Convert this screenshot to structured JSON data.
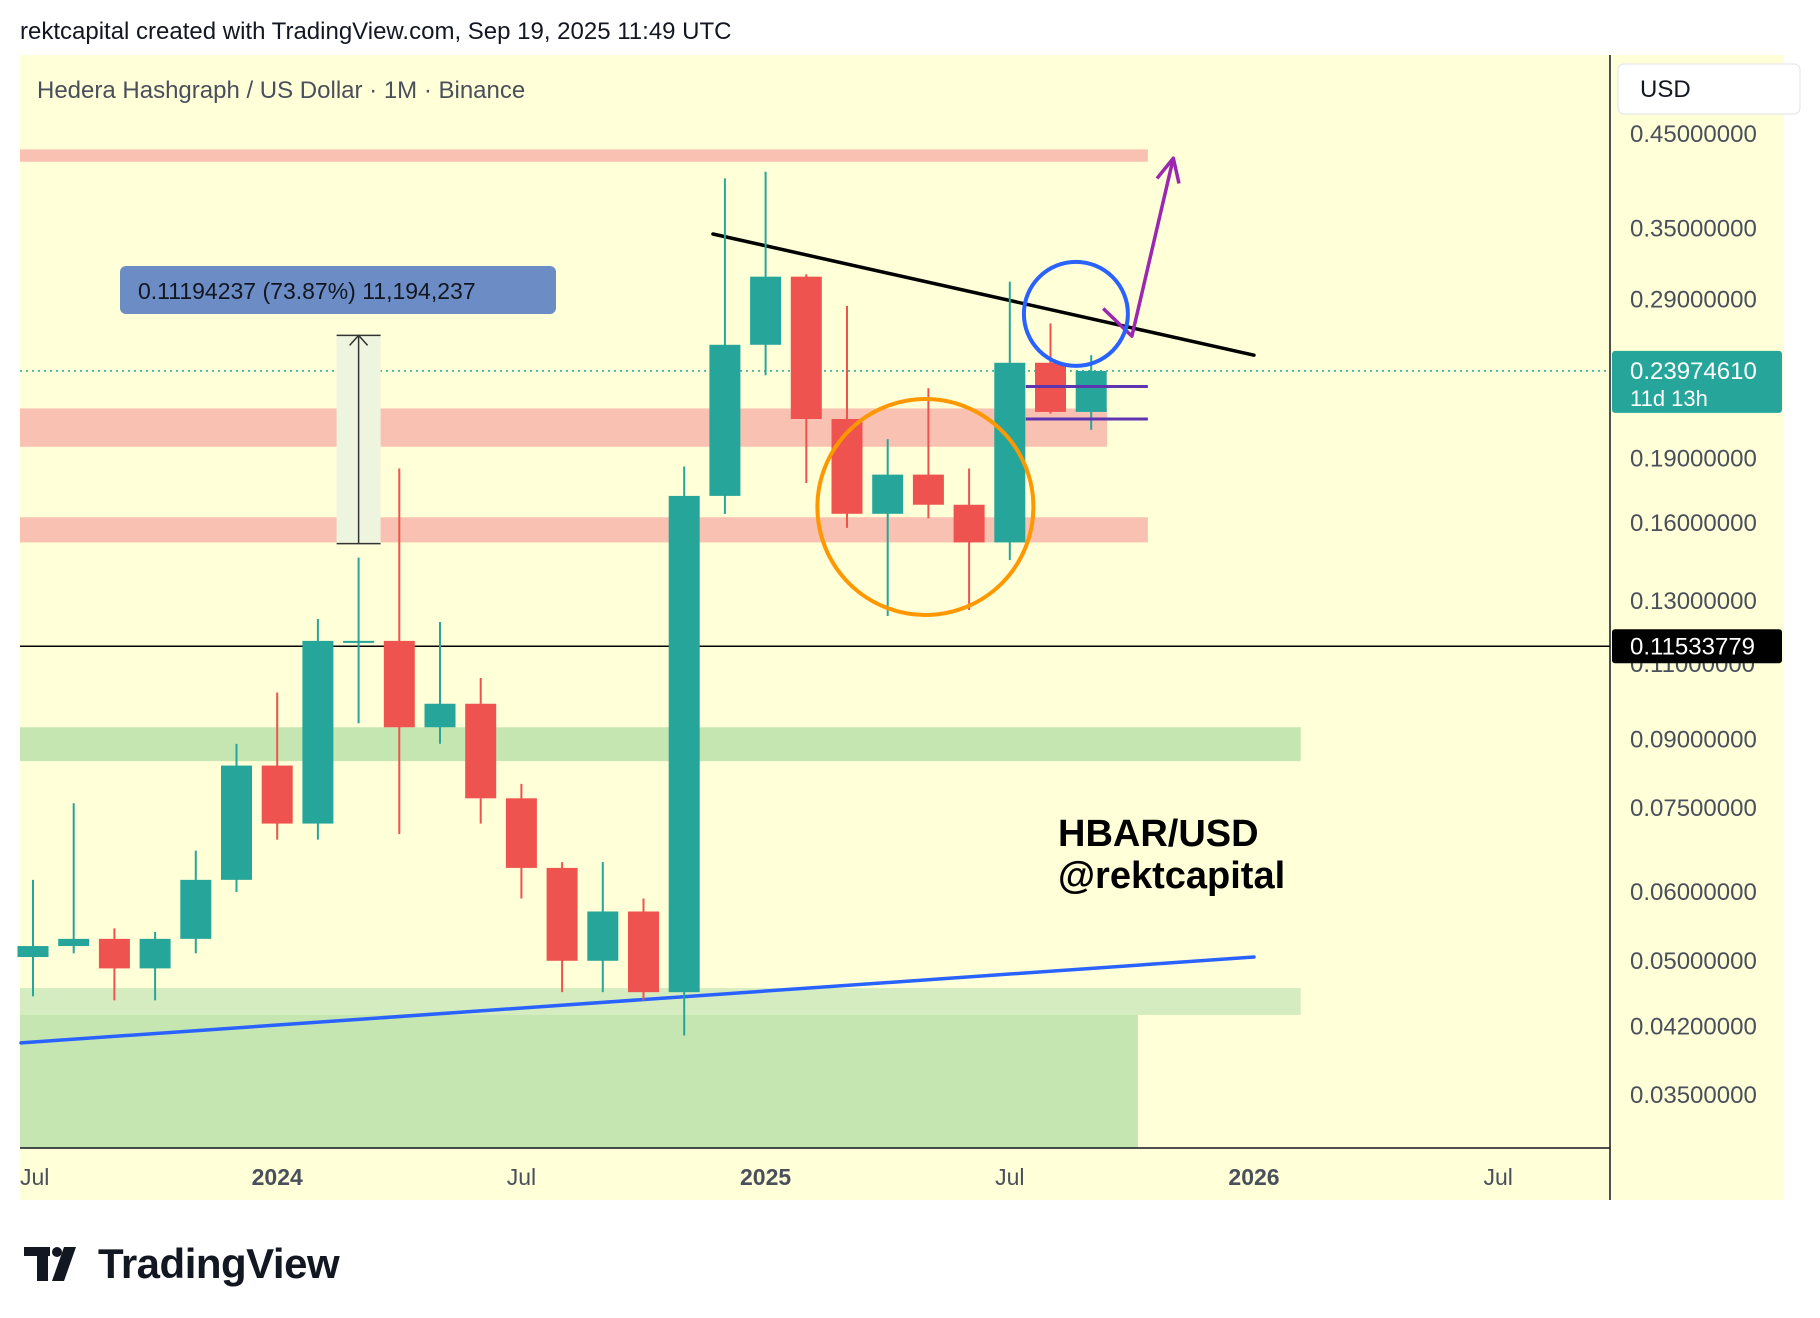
{
  "header": {
    "text": "rektcapital created with TradingView.com, Sep 19, 2025 11:49 UTC"
  },
  "footer": {
    "brand": "TradingView",
    "logo_icon": "tradingview-logo-icon"
  },
  "chart_data": {
    "type": "candlestick",
    "title": "Hedera Hashgraph / US Dollar · 1M · Binance",
    "currency": "USD",
    "scale": "log",
    "ylim": [
      0.03,
      0.5
    ],
    "y_ticks": [
      {
        "label": "0.45000000",
        "value": 0.45
      },
      {
        "label": "0.35000000",
        "value": 0.35
      },
      {
        "label": "0.29000000",
        "value": 0.29
      },
      {
        "label": "0.19000000",
        "value": 0.19
      },
      {
        "label": "0.16000000",
        "value": 0.16
      },
      {
        "label": "0.13000000",
        "value": 0.13
      },
      {
        "label": "0.11000000",
        "value": 0.11
      },
      {
        "label": "0.09000000",
        "value": 0.09
      },
      {
        "label": "0.07500000",
        "value": 0.075
      },
      {
        "label": "0.06000000",
        "value": 0.06
      },
      {
        "label": "0.05000000",
        "value": 0.05
      },
      {
        "label": "0.04200000",
        "value": 0.042
      },
      {
        "label": "0.03500000",
        "value": 0.035
      }
    ],
    "x_ticks": [
      {
        "label": "Jul",
        "date": "2023-07",
        "bold": false
      },
      {
        "label": "2024",
        "date": "2024-01",
        "bold": true
      },
      {
        "label": "Jul",
        "date": "2024-07",
        "bold": false
      },
      {
        "label": "2025",
        "date": "2025-01",
        "bold": true
      },
      {
        "label": "Jul",
        "date": "2025-07",
        "bold": false
      },
      {
        "label": "2026",
        "date": "2026-01",
        "bold": true
      },
      {
        "label": "Jul",
        "date": "2026-07",
        "bold": false
      }
    ],
    "candles": [
      {
        "date": "2023-07",
        "open": 0.0505,
        "high": 0.062,
        "low": 0.0455,
        "close": 0.052
      },
      {
        "date": "2023-08",
        "open": 0.052,
        "high": 0.076,
        "low": 0.051,
        "close": 0.053
      },
      {
        "date": "2023-09",
        "open": 0.053,
        "high": 0.0545,
        "low": 0.045,
        "close": 0.049
      },
      {
        "date": "2023-10",
        "open": 0.049,
        "high": 0.054,
        "low": 0.045,
        "close": 0.053
      },
      {
        "date": "2023-11",
        "open": 0.053,
        "high": 0.067,
        "low": 0.051,
        "close": 0.062
      },
      {
        "date": "2023-12",
        "open": 0.062,
        "high": 0.089,
        "low": 0.06,
        "close": 0.084
      },
      {
        "date": "2024-01",
        "open": 0.084,
        "high": 0.102,
        "low": 0.069,
        "close": 0.072
      },
      {
        "date": "2024-02",
        "open": 0.072,
        "high": 0.124,
        "low": 0.069,
        "close": 0.117
      },
      {
        "date": "2024-03",
        "open": 0.117,
        "high": 0.146,
        "low": 0.094,
        "close": 0.117
      },
      {
        "date": "2024-04",
        "open": 0.117,
        "high": 0.185,
        "low": 0.07,
        "close": 0.093
      },
      {
        "date": "2024-05",
        "open": 0.093,
        "high": 0.123,
        "low": 0.089,
        "close": 0.099
      },
      {
        "date": "2024-06",
        "open": 0.099,
        "high": 0.106,
        "low": 0.072,
        "close": 0.077
      },
      {
        "date": "2024-07",
        "open": 0.077,
        "high": 0.08,
        "low": 0.059,
        "close": 0.064
      },
      {
        "date": "2024-08",
        "open": 0.064,
        "high": 0.065,
        "low": 0.046,
        "close": 0.05
      },
      {
        "date": "2024-09",
        "open": 0.05,
        "high": 0.065,
        "low": 0.046,
        "close": 0.057
      },
      {
        "date": "2024-10",
        "open": 0.057,
        "high": 0.059,
        "low": 0.045,
        "close": 0.046
      },
      {
        "date": "2024-11",
        "open": 0.046,
        "high": 0.186,
        "low": 0.041,
        "close": 0.172
      },
      {
        "date": "2024-12",
        "open": 0.172,
        "high": 0.4,
        "low": 0.164,
        "close": 0.257
      },
      {
        "date": "2025-01",
        "open": 0.257,
        "high": 0.407,
        "low": 0.237,
        "close": 0.308
      },
      {
        "date": "2025-02",
        "open": 0.308,
        "high": 0.31,
        "low": 0.178,
        "close": 0.211
      },
      {
        "date": "2025-03",
        "open": 0.211,
        "high": 0.285,
        "low": 0.158,
        "close": 0.164
      },
      {
        "date": "2025-04",
        "open": 0.164,
        "high": 0.2,
        "low": 0.125,
        "close": 0.182
      },
      {
        "date": "2025-05",
        "open": 0.182,
        "high": 0.229,
        "low": 0.162,
        "close": 0.168
      },
      {
        "date": "2025-06",
        "open": 0.168,
        "high": 0.185,
        "low": 0.127,
        "close": 0.152
      },
      {
        "date": "2025-07",
        "open": 0.152,
        "high": 0.304,
        "low": 0.145,
        "close": 0.245
      },
      {
        "date": "2025-08",
        "open": 0.245,
        "high": 0.272,
        "low": 0.214,
        "close": 0.215
      },
      {
        "date": "2025-09",
        "open": 0.215,
        "high": 0.25,
        "low": 0.205,
        "close": 0.2397
      }
    ],
    "current_price": {
      "label": "0.23974610",
      "sub": "11d 13h",
      "value": 0.2397461,
      "color": "#26a69a"
    },
    "horizontal_line": {
      "label": "0.11533779",
      "value": 0.11533779,
      "color": "#000000"
    },
    "measure_tool": {
      "label": "0.11194237 (73.87%) 11,194,237",
      "from_value": 0.1515,
      "to_value": 0.2635,
      "date": "2024-03"
    },
    "resistance_zones": [
      {
        "from_value": 0.418,
        "to_value": 0.432,
        "end": "2025-10",
        "color": "#f9c1b2"
      },
      {
        "from_value": 0.196,
        "to_value": 0.217,
        "end": "2025-09",
        "color": "#f9c1b2"
      },
      {
        "from_value": 0.152,
        "to_value": 0.1625,
        "end": "2025-10",
        "color": "#f9c1b2"
      }
    ],
    "support_zones": [
      {
        "from_value": 0.085,
        "to_value": 0.093,
        "end": "2026-02",
        "color": "#c5e5b1"
      },
      {
        "from_value": 0.0433,
        "to_value": 0.0465,
        "end": "2026-02",
        "color": "#d4ecbf"
      },
      {
        "from_value": 0.029,
        "to_value": 0.0433,
        "end": "2025-10",
        "color": "#c5e5b1"
      }
    ],
    "trendlines": [
      {
        "name": "descending-resistance",
        "from": {
          "date": "2024-12",
          "value": 0.345
        },
        "to": {
          "date": "2026-01",
          "value": 0.25
        },
        "color": "#000000"
      },
      {
        "name": "ascending-support",
        "from": {
          "date": "2023-07",
          "value": 0.0402
        },
        "to": {
          "date": "2026-01",
          "value": 0.0505
        },
        "color": "#2962ff"
      }
    ],
    "range_box": {
      "top_value": 0.23,
      "bottom_value": 0.211,
      "from": "2025-07",
      "to": "2025-10",
      "color": "#5e35b1"
    },
    "projection_arrow": {
      "points": [
        {
          "date": "2025-09",
          "value": 0.283
        },
        {
          "date": "2025-10",
          "value": 0.263
        },
        {
          "date": "2025-12",
          "value": 0.422
        }
      ],
      "color": "#9c27b0"
    },
    "highlight_circles": [
      {
        "center": {
          "date": "2025-05",
          "value": 0.167
        },
        "color": "#ff9800"
      },
      {
        "center": {
          "date": "2025-10",
          "value": 0.279
        },
        "color": "#2962ff"
      }
    ],
    "annotation": {
      "line1": "HBAR/USD",
      "line2": "@rektcapital"
    },
    "colors": {
      "up": "#26a69a",
      "down": "#ef5350",
      "background": "#ffffd8"
    }
  }
}
